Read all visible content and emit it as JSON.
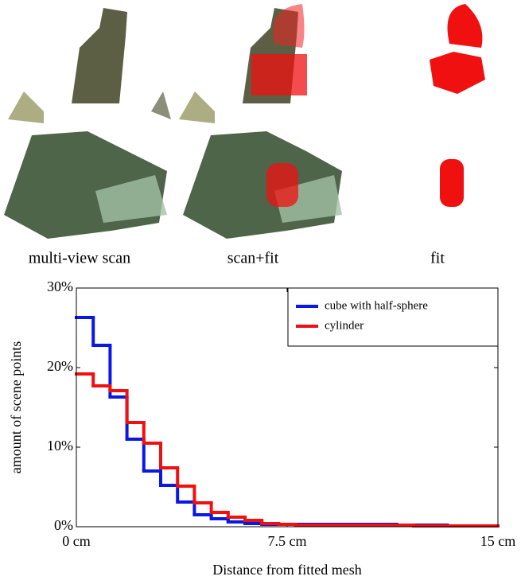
{
  "figure": {
    "captions": [
      "multi-view scan",
      "scan+fit",
      "fit"
    ]
  },
  "chart_data": {
    "type": "histogram",
    "x_label": "Distance from fitted mesh",
    "y_label": "amount of scene points",
    "bins": [
      0,
      0.6,
      1.2,
      1.8,
      2.4,
      3.0,
      3.6,
      4.2,
      4.8,
      5.4,
      6.0,
      6.6,
      7.2,
      7.8,
      8.4,
      9.0,
      9.6,
      10.2,
      10.8,
      11.4,
      12.0,
      12.6,
      13.2,
      13.8,
      14.4,
      15
    ],
    "series": [
      {
        "name": "cube with half-sphere",
        "color": "#0a18e6",
        "values": [
          26.3,
          22.8,
          16.3,
          11.0,
          7.0,
          5.2,
          3.1,
          1.5,
          1.0,
          0.6,
          0.4,
          0.3,
          0.3,
          0.3,
          0.3,
          0.3,
          0.3,
          0.3,
          0.3,
          0.2,
          0.2,
          0.2,
          0.1,
          0.1,
          0.1
        ]
      },
      {
        "name": "cylinder",
        "color": "#f01010",
        "values": [
          19.2,
          17.7,
          17.1,
          13.1,
          10.5,
          7.4,
          5.1,
          3.0,
          1.8,
          1.2,
          0.8,
          0.4,
          0.3,
          0.2,
          0.2,
          0.2,
          0.2,
          0.2,
          0.2,
          0.2,
          0.1,
          0.1,
          0.1,
          0.1,
          0.1
        ]
      }
    ],
    "xlim": [
      0,
      15
    ],
    "xticks": [
      {
        "value": 0,
        "label": "0 cm"
      },
      {
        "value": 7.5,
        "label": "7.5 cm"
      },
      {
        "value": 15,
        "label": "15 cm"
      }
    ],
    "ylim": [
      0,
      30
    ],
    "yticks": [
      {
        "value": 0,
        "label": "0%"
      },
      {
        "value": 10,
        "label": "10%"
      },
      {
        "value": 20,
        "label": "20%"
      },
      {
        "value": 30,
        "label": "30%"
      }
    ],
    "legend": "top-right"
  }
}
